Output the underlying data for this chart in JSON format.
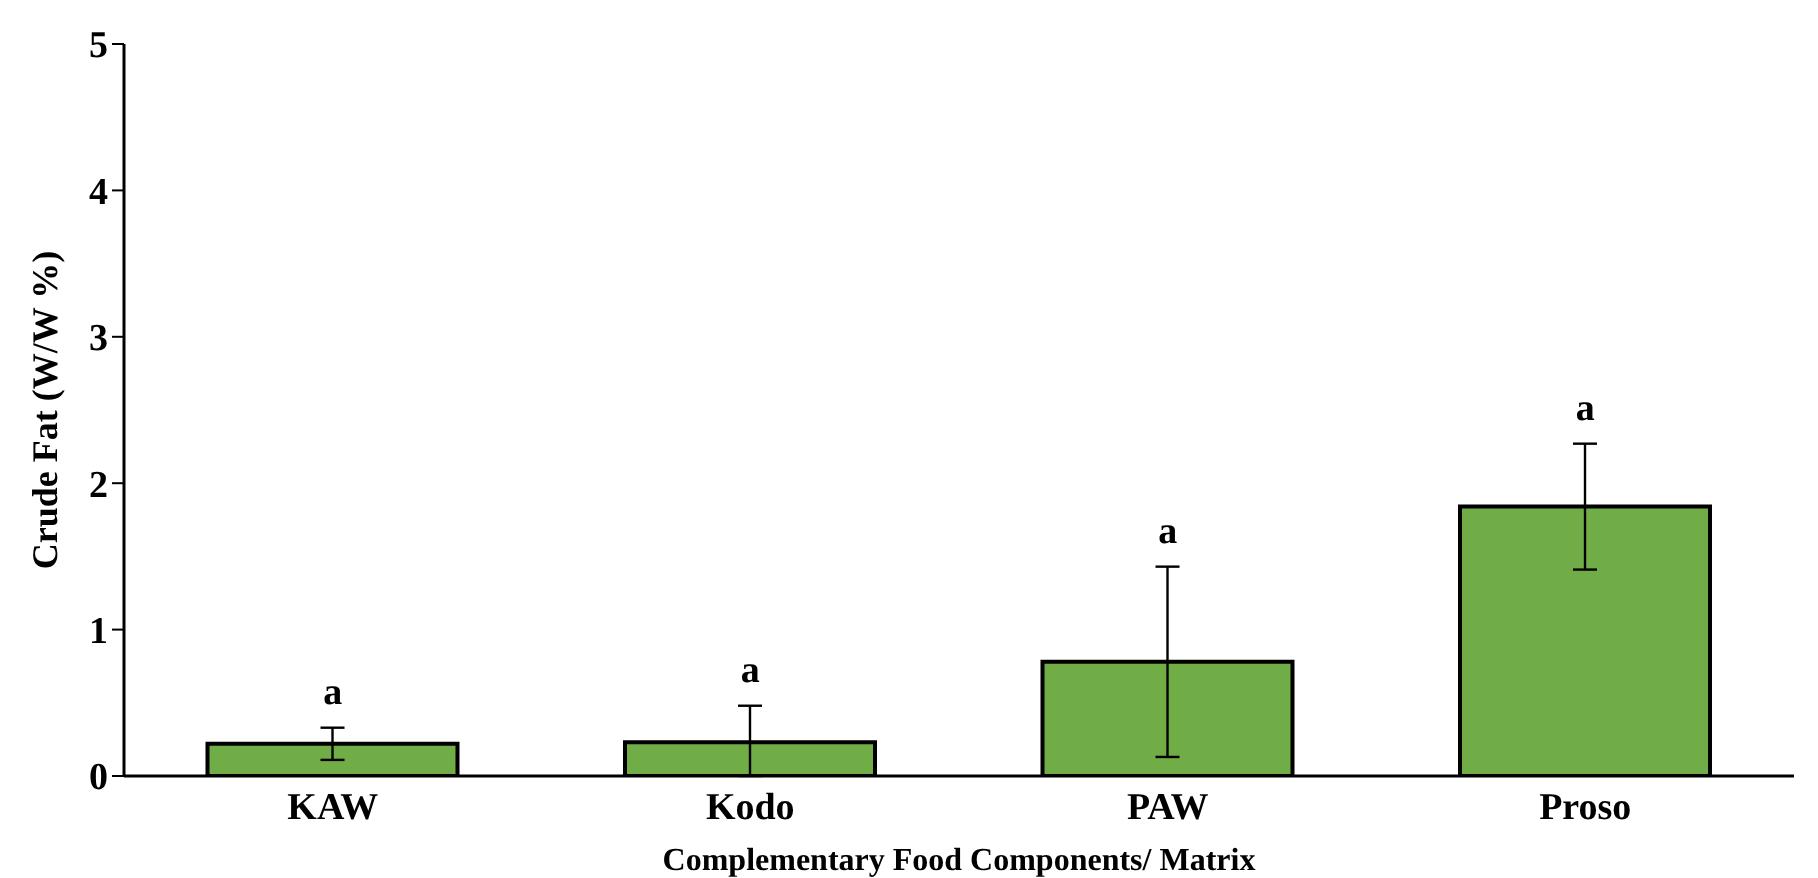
{
  "chart_data": {
    "type": "bar",
    "xlabel": "Complementary Food Components/ Matrix",
    "ylabel": "Crude Fat  (W/W %)",
    "categories": [
      "KAW",
      "Kodo",
      "PAW",
      "Proso"
    ],
    "values": [
      0.22,
      0.23,
      0.78,
      1.84
    ],
    "errors": [
      0.11,
      [
        0.23,
        0.25
      ],
      0.65,
      0.43
    ],
    "color": "#70ad47",
    "ylim": [
      0,
      5
    ],
    "yticks": [
      0,
      1,
      2,
      3,
      4,
      5
    ],
    "grid": false,
    "legend": false,
    "annotations": [
      "a",
      "a",
      "a",
      "a"
    ]
  }
}
